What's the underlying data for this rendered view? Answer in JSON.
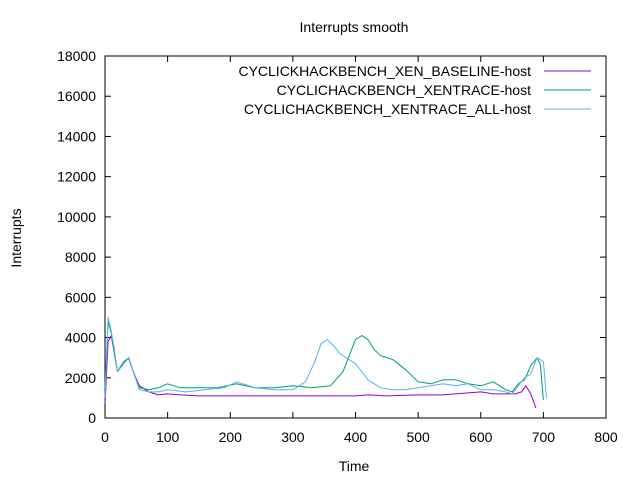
{
  "chart_data": {
    "type": "line",
    "title": "Interrupts smooth",
    "xlabel": "Time",
    "ylabel": "Interrupts",
    "xlim": [
      0,
      800
    ],
    "ylim": [
      0,
      18000
    ],
    "xticks": [
      0,
      100,
      200,
      300,
      400,
      500,
      600,
      700,
      800
    ],
    "yticks": [
      0,
      2000,
      4000,
      6000,
      8000,
      10000,
      12000,
      14000,
      16000,
      18000
    ],
    "grid": false,
    "legend_position": "top-right",
    "series": [
      {
        "name": "CYCLICKHACKBENCH_XEN_BASELINE-host",
        "color": "#9400d3",
        "x": [
          0,
          5,
          10,
          15,
          20,
          30,
          38,
          45,
          55,
          70,
          85,
          100,
          120,
          150,
          200,
          250,
          300,
          350,
          400,
          420,
          450,
          500,
          540,
          560,
          600,
          620,
          640,
          655,
          665,
          672,
          680,
          688
        ],
        "y": [
          700,
          3800,
          4100,
          3200,
          2300,
          2800,
          2950,
          2300,
          1600,
          1300,
          1150,
          1200,
          1150,
          1100,
          1100,
          1100,
          1100,
          1100,
          1100,
          1150,
          1100,
          1150,
          1150,
          1200,
          1300,
          1200,
          1200,
          1200,
          1300,
          1600,
          1200,
          500
        ]
      },
      {
        "name": "CYCLICHACKBENCH_XENTRACE-host",
        "color": "#009e73",
        "x": [
          0,
          5,
          10,
          15,
          20,
          30,
          38,
          45,
          55,
          70,
          85,
          100,
          120,
          150,
          180,
          210,
          240,
          270,
          300,
          330,
          360,
          380,
          400,
          410,
          420,
          430,
          440,
          460,
          480,
          500,
          520,
          540,
          560,
          580,
          600,
          620,
          640,
          650,
          660,
          670,
          680,
          690,
          695,
          700
        ],
        "y": [
          1500,
          4800,
          4200,
          3200,
          2300,
          2800,
          3000,
          2300,
          1500,
          1400,
          1500,
          1700,
          1500,
          1500,
          1500,
          1700,
          1500,
          1500,
          1600,
          1500,
          1600,
          2300,
          3900,
          4100,
          3900,
          3400,
          3100,
          2900,
          2400,
          1800,
          1700,
          1900,
          1900,
          1700,
          1600,
          1800,
          1400,
          1300,
          1700,
          1900,
          2600,
          3000,
          2700,
          900
        ]
      },
      {
        "name": "CYCLICHACKBENCH_XENTRACE_ALL-host",
        "color": "#56b4e9",
        "x": [
          0,
          5,
          10,
          15,
          20,
          30,
          38,
          45,
          55,
          70,
          85,
          100,
          130,
          160,
          190,
          210,
          240,
          270,
          300,
          320,
          335,
          345,
          355,
          365,
          375,
          390,
          400,
          410,
          420,
          440,
          460,
          480,
          500,
          520,
          540,
          560,
          580,
          600,
          620,
          640,
          650,
          660,
          670,
          680,
          690,
          700,
          705
        ],
        "y": [
          1000,
          5000,
          4300,
          3400,
          2300,
          2700,
          3000,
          2300,
          1400,
          1300,
          1300,
          1400,
          1300,
          1400,
          1500,
          1800,
          1500,
          1400,
          1400,
          1800,
          2800,
          3700,
          3900,
          3600,
          3200,
          2900,
          2700,
          2300,
          1900,
          1500,
          1400,
          1400,
          1500,
          1600,
          1700,
          1600,
          1700,
          1400,
          1400,
          1300,
          1200,
          1600,
          2000,
          2200,
          3000,
          2800,
          1000
        ]
      }
    ]
  }
}
